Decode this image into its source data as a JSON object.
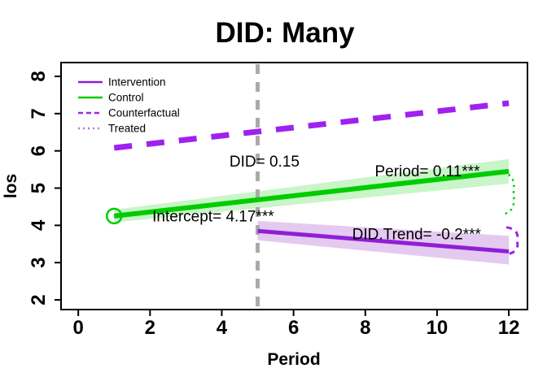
{
  "chart_data": {
    "type": "line",
    "title": "DID: Many",
    "xlabel": "Period",
    "ylabel": "los",
    "xlim": [
      -0.48,
      12.52
    ],
    "ylim": [
      1.74,
      8.37
    ],
    "xticks": [
      0,
      2,
      4,
      6,
      8,
      10,
      12
    ],
    "yticks": [
      2,
      3,
      4,
      5,
      6,
      7,
      8
    ],
    "grid": false,
    "colors": {
      "purple": "#A020F0",
      "intervention_purple": "#8F1FD6",
      "green": "#00CC00",
      "green_band": "#c9f5c9",
      "purple_band": "#e4c9f0",
      "vline_gray": "#AAAAAA",
      "treated_light_purple": "#B573E6",
      "text": "#000000"
    },
    "vline": {
      "x": 5,
      "color": "#AAAAAA",
      "dash": "12,10",
      "width": 5
    },
    "series": [
      {
        "name": "Counterfactual",
        "color": "#A020F0",
        "width": 7,
        "dash": "22,18",
        "points": [
          [
            1,
            6.08
          ],
          [
            12,
            7.28
          ]
        ]
      },
      {
        "name": "Control",
        "color": "#00CC00",
        "width": 6,
        "dash": null,
        "points": [
          [
            1,
            4.25
          ],
          [
            12,
            5.45
          ]
        ],
        "band": [
          [
            1,
            4.42
          ],
          [
            12,
            5.78
          ],
          [
            12,
            5.12
          ],
          [
            1,
            4.08
          ]
        ],
        "band_color": "#c9f5c9"
      },
      {
        "name": "Intervention",
        "color": "#8F1FD6",
        "width": 5,
        "dash": null,
        "points": [
          [
            5,
            3.85
          ],
          [
            12,
            3.3
          ]
        ],
        "band": [
          [
            5,
            4.12
          ],
          [
            12,
            3.72
          ],
          [
            12,
            2.95
          ],
          [
            5,
            3.6
          ]
        ],
        "band_color": "#e4c9f0"
      }
    ],
    "marker": {
      "x": 1,
      "y": 4.25,
      "r": 9,
      "color": "#00CC00"
    },
    "gap_markers": [
      {
        "name": "control-gap-bracket",
        "color": "#00CC00",
        "dash": "2.5,5",
        "width": 2.5,
        "x": 11.9,
        "y_top": 5.42,
        "y_bottom": 4.3
      },
      {
        "name": "did-trend-brace",
        "color": "#A020F0",
        "dash": "7,6",
        "width": 3,
        "x": 12.0,
        "y_top": 3.95,
        "y_bottom": 3.22
      }
    ],
    "annotations": [
      {
        "text": "DID= 0.15",
        "x": 5.19,
        "y": 5.73
      },
      {
        "text": "Period= 0.11***",
        "x": 9.73,
        "y": 5.47
      },
      {
        "text": "Intercept= 4.17***",
        "x": 3.76,
        "y": 4.26
      },
      {
        "text": "DID.Trend= -0.2***",
        "x": 9.43,
        "y": 3.78
      }
    ],
    "legend": {
      "position": "top-left",
      "items": [
        {
          "label": "Intervention",
          "color": "#8F1FD6",
          "dash": null
        },
        {
          "label": "Control",
          "color": "#00CC00",
          "dash": null
        },
        {
          "label": "Counterfactual",
          "color": "#A020F0",
          "dash": "6,4"
        },
        {
          "label": "Treated",
          "color": "#B573E6",
          "dash": "2,4"
        }
      ]
    }
  }
}
